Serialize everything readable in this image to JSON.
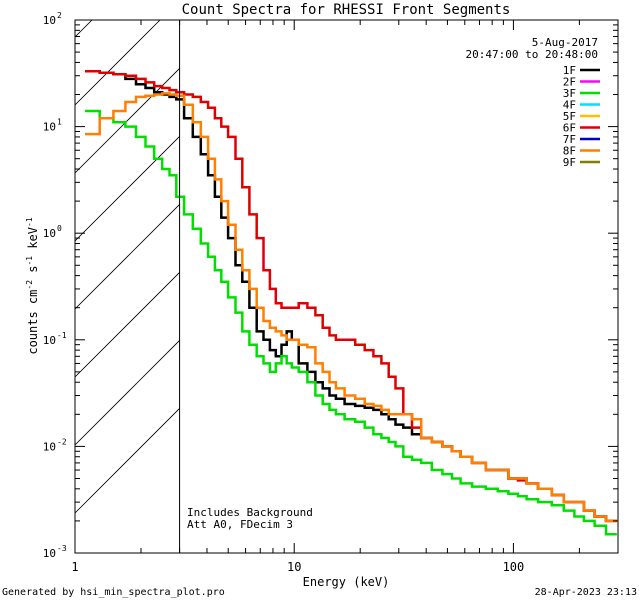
{
  "chart_data": {
    "type": "line",
    "title": "Count Spectra for RHESSI Front Segments",
    "xlabel": "Energy (keV)",
    "ylabel_base": "counts cm",
    "ylabel_sup1": "-2",
    "ylabel_mid1": " s",
    "ylabel_sup2": "-1",
    "ylabel_mid2": " keV",
    "ylabel_sup3": "-1",
    "xscale": "log",
    "yscale": "log",
    "xlim": [
      1,
      300
    ],
    "ylim": [
      0.001,
      100
    ],
    "x_ticks": [
      {
        "value": 1,
        "label": "1"
      },
      {
        "value": 10,
        "label": "10"
      },
      {
        "value": 100,
        "label": "100"
      }
    ],
    "y_ticks": [
      {
        "value": 0.001,
        "base": "10",
        "exp": "-3"
      },
      {
        "value": 0.01,
        "base": "10",
        "exp": "-2"
      },
      {
        "value": 0.1,
        "base": "10",
        "exp": "-1"
      },
      {
        "value": 1,
        "base": "10",
        "exp": "0"
      },
      {
        "value": 10,
        "base": "10",
        "exp": "1"
      },
      {
        "value": 100,
        "base": "10",
        "exp": "2"
      }
    ],
    "excluded_region": {
      "x_from": 1,
      "x_to": 3
    },
    "date_label": "5-Aug-2017",
    "time_range_label": "20:47:00 to 20:48:00",
    "annotations": [
      "Includes Background",
      "Att A0, FDecim 3"
    ],
    "legend": [
      {
        "name": "1F",
        "color": "#000000"
      },
      {
        "name": "2F",
        "color": "#ff00ff"
      },
      {
        "name": "3F",
        "color": "#00e000"
      },
      {
        "name": "4F",
        "color": "#00e0ff"
      },
      {
        "name": "5F",
        "color": "#ffc000"
      },
      {
        "name": "6F",
        "color": "#e00000"
      },
      {
        "name": "7F",
        "color": "#0000cc"
      },
      {
        "name": "8F",
        "color": "#ff8000"
      },
      {
        "name": "9F",
        "color": "#808000"
      }
    ],
    "x": [
      1.2,
      1.4,
      1.6,
      1.8,
      2.0,
      2.2,
      2.4,
      2.6,
      2.8,
      3.0,
      3.3,
      3.6,
      3.9,
      4.2,
      4.5,
      4.8,
      5.2,
      5.6,
      6.0,
      6.5,
      7.0,
      7.5,
      8.0,
      8.5,
      9.0,
      9.5,
      10,
      11,
      12,
      13,
      14,
      15,
      16,
      18,
      20,
      22,
      24,
      26,
      28,
      30,
      33,
      36,
      40,
      45,
      50,
      55,
      60,
      70,
      80,
      90,
      100,
      110,
      120,
      140,
      160,
      180,
      200,
      220,
      250,
      280
    ],
    "series": [
      {
        "name": "1F",
        "color": "#000000",
        "values": [
          33,
          32,
          31,
          28,
          25,
          23,
          21,
          20,
          19,
          18,
          12,
          8,
          5.5,
          3.5,
          2.2,
          1.4,
          0.9,
          0.5,
          0.35,
          0.2,
          0.12,
          0.1,
          0.08,
          0.07,
          0.09,
          0.12,
          0.1,
          0.06,
          0.05,
          0.04,
          0.035,
          0.03,
          0.028,
          0.025,
          0.024,
          0.023,
          0.022,
          0.02,
          0.018,
          0.016,
          0.015,
          0.013,
          0.012,
          0.011,
          0.01,
          0.009,
          0.008,
          0.007,
          0.006,
          0.006,
          0.005,
          0.005,
          0.0045,
          0.004,
          0.0035,
          0.003,
          0.003,
          0.0025,
          0.0022,
          0.002
        ]
      },
      {
        "name": "3F",
        "color": "#00e000",
        "values": [
          14,
          12,
          11,
          10,
          8,
          6.5,
          5,
          4,
          3.5,
          2.2,
          1.5,
          1.1,
          0.8,
          0.6,
          0.45,
          0.35,
          0.25,
          0.18,
          0.12,
          0.09,
          0.07,
          0.06,
          0.05,
          0.06,
          0.07,
          0.06,
          0.055,
          0.05,
          0.04,
          0.03,
          0.025,
          0.022,
          0.02,
          0.018,
          0.017,
          0.015,
          0.013,
          0.012,
          0.011,
          0.01,
          0.008,
          0.0075,
          0.007,
          0.006,
          0.0055,
          0.005,
          0.0045,
          0.0042,
          0.004,
          0.0038,
          0.0036,
          0.0034,
          0.0032,
          0.003,
          0.0028,
          0.0025,
          0.0022,
          0.002,
          0.0018,
          0.0015
        ]
      },
      {
        "name": "6F",
        "color": "#e00000",
        "values": [
          33,
          32,
          31,
          30,
          28,
          26,
          24,
          23,
          22,
          21,
          20,
          19,
          17,
          15,
          12,
          10,
          8,
          5,
          2.7,
          1.5,
          0.9,
          0.45,
          0.3,
          0.22,
          0.2,
          0.2,
          0.2,
          0.22,
          0.2,
          0.17,
          0.13,
          0.11,
          0.1,
          0.1,
          0.09,
          0.08,
          0.07,
          0.06,
          0.045,
          0.035,
          0.02,
          0.015,
          0.012,
          0.011,
          0.01,
          0.009,
          0.008,
          0.007,
          0.006,
          0.006,
          0.005,
          0.0048,
          0.0045,
          0.004,
          0.0035,
          0.003,
          0.003,
          0.0025,
          0.0022,
          0.002
        ]
      },
      {
        "name": "8F",
        "color": "#ff8000",
        "values": [
          8.5,
          12,
          14,
          17,
          19,
          19.5,
          20,
          20.5,
          20,
          19.5,
          16,
          11,
          8,
          5,
          3.2,
          2,
          1.2,
          0.7,
          0.45,
          0.3,
          0.2,
          0.15,
          0.13,
          0.12,
          0.11,
          0.1,
          0.1,
          0.09,
          0.085,
          0.06,
          0.05,
          0.04,
          0.035,
          0.03,
          0.028,
          0.025,
          0.024,
          0.022,
          0.02,
          0.02,
          0.02,
          0.018,
          0.012,
          0.011,
          0.01,
          0.009,
          0.008,
          0.007,
          0.006,
          0.006,
          0.005,
          0.005,
          0.0045,
          0.004,
          0.0035,
          0.003,
          0.003,
          0.0025,
          0.0022,
          0.002
        ]
      }
    ]
  },
  "footer": {
    "generated_by": "Generated by hsi_min_spectra_plot.pro",
    "timestamp": "28-Apr-2023 23:13"
  }
}
